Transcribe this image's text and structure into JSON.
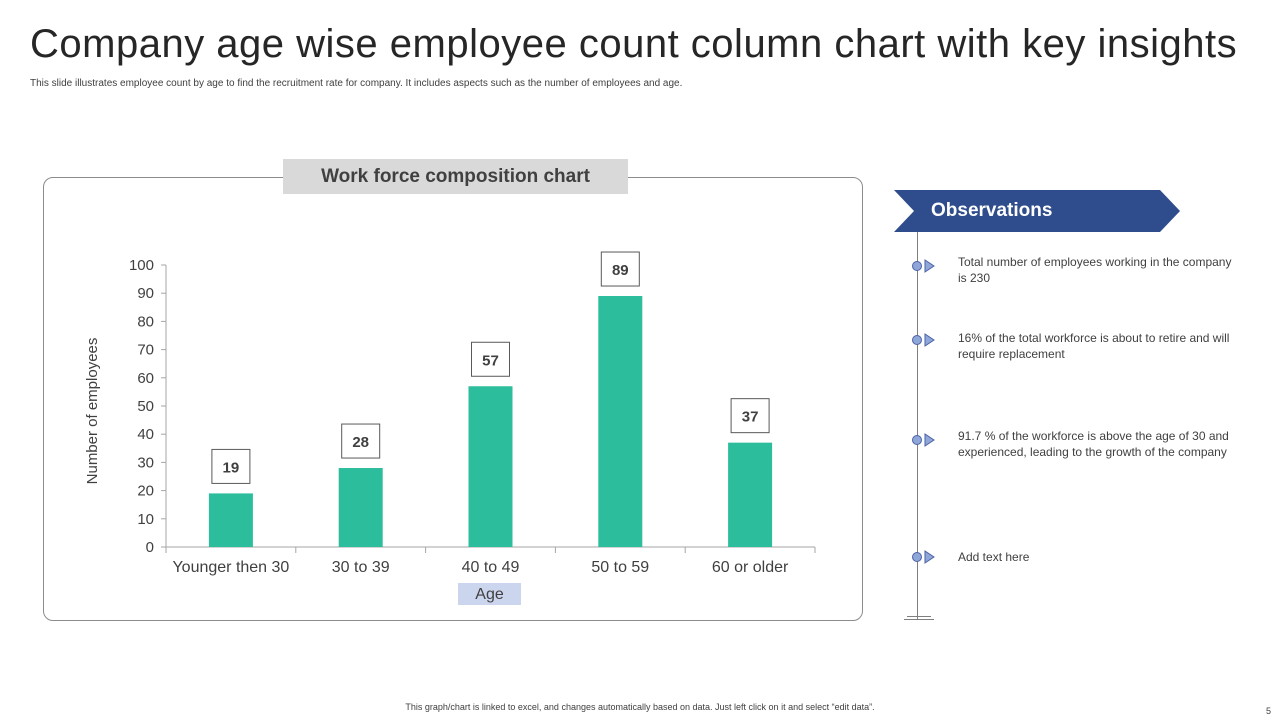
{
  "slide": {
    "title": "Company age wise employee count column chart with key insights",
    "subtitle": "This slide illustrates employee count by age to find the recruitment rate for company. It includes aspects such as the number of employees and age.",
    "footer": "This graph/chart is linked to excel, and changes automatically based on data. Just left click on it and select “edit data”.",
    "page_number": "5"
  },
  "chart_panel": {
    "title": "Work force composition chart"
  },
  "chart_data": {
    "type": "bar",
    "title": "Work force composition chart",
    "categories": [
      "Younger then 30",
      "30 to 39",
      "40 to 49",
      "50 to 59",
      "60 or older"
    ],
    "values": [
      19,
      28,
      57,
      89,
      37
    ],
    "xlabel": "Age",
    "ylabel": "Number of employees",
    "ylim": [
      0,
      100
    ],
    "yticks": [
      0,
      10,
      20,
      30,
      40,
      50,
      60,
      70,
      80,
      90,
      100
    ],
    "data_labels": true,
    "grid": false,
    "bar_color": "#2bbd9c"
  },
  "observations": {
    "heading": "Observations",
    "accent_color": "#2f4d8c",
    "items": [
      {
        "text": "Total number of employees working in the company is 230"
      },
      {
        "text": "16% of the total workforce  is about to retire  and will require  replacement"
      },
      {
        "text": "91.7 % of the workforce  is above  the age of 30 and experienced,  leading to the growth  of the company"
      },
      {
        "text": "Add text here"
      }
    ]
  }
}
